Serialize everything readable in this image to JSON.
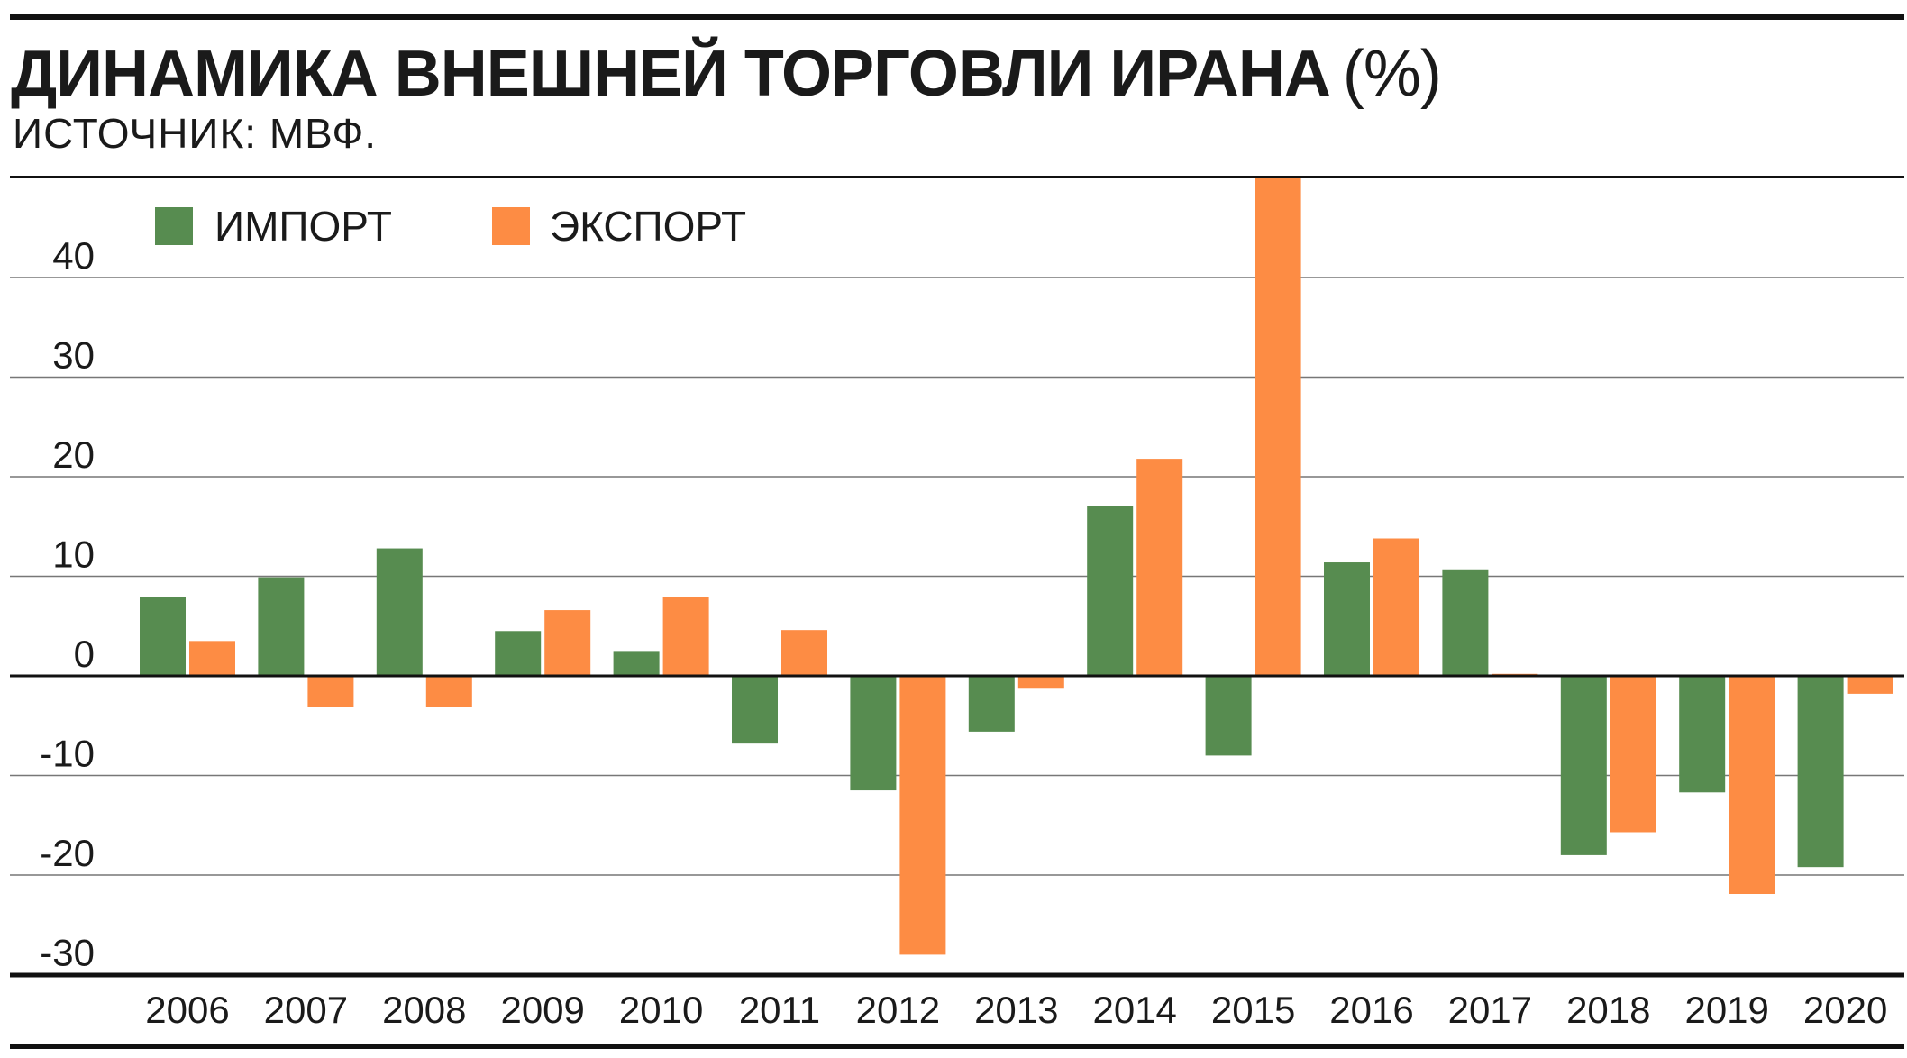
{
  "title": "ДИНАМИКА ВНЕШНЕЙ ТОРГОВЛИ ИРАНА",
  "title_unit": "(%)",
  "subtitle": "ИСТОЧНИК: МВФ.",
  "colors": {
    "import": "#578c50",
    "export": "#fd8c44",
    "grid": "#777777",
    "axis": "#111111"
  },
  "chart_data": {
    "type": "bar",
    "categories": [
      "2006",
      "2007",
      "2008",
      "2009",
      "2010",
      "2011",
      "2012",
      "2013",
      "2014",
      "2015",
      "2016",
      "2017",
      "2018",
      "2019",
      "2020"
    ],
    "series": [
      {
        "name": "ИМПОРТ",
        "color": "#578c50",
        "values": [
          7.9,
          9.9,
          12.8,
          4.5,
          2.5,
          -6.8,
          -11.5,
          -5.6,
          17.1,
          -8.0,
          11.4,
          10.7,
          -18.0,
          -11.7,
          -19.2
        ]
      },
      {
        "name": "ЭКСПОРТ",
        "color": "#fd8c44",
        "values": [
          3.5,
          -3.1,
          -3.1,
          6.6,
          7.9,
          4.6,
          -28.0,
          -1.2,
          21.8,
          50.0,
          13.8,
          0.2,
          -15.7,
          -21.9,
          -1.8
        ]
      }
    ],
    "ylim": [
      -30,
      50
    ],
    "yticks": [
      40,
      30,
      20,
      10,
      0,
      -10,
      -20,
      -30
    ],
    "ytick_labels": [
      "40",
      "30",
      "20",
      "10",
      "0",
      "-10",
      "-20",
      "-30"
    ],
    "grid": true,
    "legend": "top-left",
    "xlabel": "",
    "ylabel": ""
  }
}
